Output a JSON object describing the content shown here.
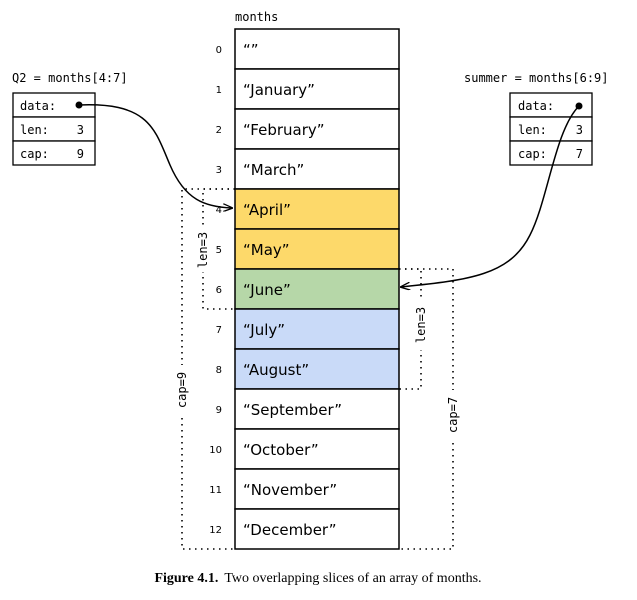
{
  "array": {
    "label": "months",
    "cells": [
      {
        "index": "0",
        "value": "“”",
        "color": "#ffffff"
      },
      {
        "index": "1",
        "value": "“January”",
        "color": "#ffffff"
      },
      {
        "index": "2",
        "value": "“February”",
        "color": "#ffffff"
      },
      {
        "index": "3",
        "value": "“March”",
        "color": "#ffffff"
      },
      {
        "index": "4",
        "value": "“April”",
        "color": "#fdd96a"
      },
      {
        "index": "5",
        "value": "“May”",
        "color": "#fdd96a"
      },
      {
        "index": "6",
        "value": "“June”",
        "color": "#b6d7a8"
      },
      {
        "index": "7",
        "value": "“July”",
        "color": "#c9daf8"
      },
      {
        "index": "8",
        "value": "“August”",
        "color": "#c9daf8"
      },
      {
        "index": "9",
        "value": "“September”",
        "color": "#ffffff"
      },
      {
        "index": "10",
        "value": "“October”",
        "color": "#ffffff"
      },
      {
        "index": "11",
        "value": "“November”",
        "color": "#ffffff"
      },
      {
        "index": "12",
        "value": "“December”",
        "color": "#ffffff"
      }
    ]
  },
  "q2": {
    "label": "Q2 = months[4:7]",
    "data_label": "data:",
    "len_label": "len:",
    "len": "3",
    "cap_label": "cap:",
    "cap": "9",
    "len_bracket": "len=3",
    "cap_bracket": "cap=9"
  },
  "summer": {
    "label": "summer = months[6:9]",
    "data_label": "data:",
    "len_label": "len:",
    "len": "3",
    "cap_label": "cap:",
    "cap": "7",
    "len_bracket": "len=3",
    "cap_bracket": "cap=7"
  },
  "caption": {
    "figure": "Figure 4.1.",
    "text": "Two overlapping slices of an array of months."
  }
}
